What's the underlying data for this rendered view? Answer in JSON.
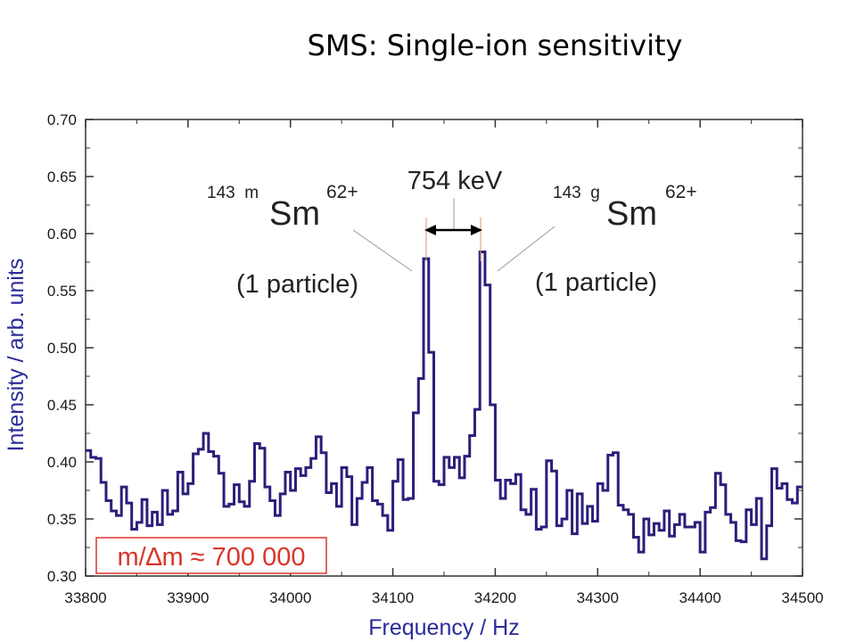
{
  "slide": {
    "title": "SMS: Single-ion sensitivity"
  },
  "chart_data": {
    "type": "line",
    "step": true,
    "xlabel": "Frequency / Hz",
    "ylabel": "Intensity / arb. units",
    "xlim": [
      33800,
      34500
    ],
    "ylim": [
      0.3,
      0.7
    ],
    "xticks": [
      33800,
      33900,
      34000,
      34100,
      34200,
      34300,
      34400,
      34500
    ],
    "xtick_labels": [
      "33800",
      "33900",
      "34000",
      "34100",
      "34200",
      "34300",
      "34400",
      "34500"
    ],
    "yticks": [
      0.3,
      0.35,
      0.4,
      0.45,
      0.5,
      0.55,
      0.6,
      0.65,
      0.7
    ],
    "ytick_labels": [
      "0.30",
      "0.35",
      "0.40",
      "0.45",
      "0.50",
      "0.55",
      "0.60",
      "0.65",
      "0.70"
    ],
    "line_color": "#2a1f7a",
    "series": [
      {
        "x": [
          33800,
          33805,
          33810,
          33815,
          33820,
          33825,
          33830,
          33835,
          33840,
          33845,
          33850,
          33855,
          33860,
          33865,
          33870,
          33875,
          33880,
          33885,
          33890,
          33895,
          33900,
          33905,
          33910,
          33915,
          33920,
          33925,
          33930,
          33935,
          33940,
          33945,
          33950,
          33955,
          33960,
          33965,
          33970,
          33975,
          33980,
          33985,
          33990,
          33995,
          34000,
          34005,
          34010,
          34015,
          34020,
          34025,
          34030,
          34035,
          34040,
          34045,
          34050,
          34055,
          34060,
          34065,
          34070,
          34075,
          34080,
          34085,
          34090,
          34095,
          34100,
          34105,
          34110,
          34115,
          34120,
          34125,
          34130,
          34135,
          34140,
          34145,
          34150,
          34155,
          34160,
          34165,
          34170,
          34175,
          34180,
          34185,
          34190,
          34195,
          34200,
          34205,
          34210,
          34215,
          34220,
          34225,
          34230,
          34235,
          34240,
          34245,
          34250,
          34255,
          34260,
          34265,
          34270,
          34275,
          34280,
          34285,
          34290,
          34295,
          34300,
          34305,
          34310,
          34315,
          34320,
          34325,
          34330,
          34335,
          34340,
          34345,
          34350,
          34355,
          34360,
          34365,
          34370,
          34375,
          34380,
          34385,
          34390,
          34395,
          34400,
          34405,
          34410,
          34415,
          34420,
          34425,
          34430,
          34435,
          34440,
          34445,
          34450,
          34455,
          34460,
          34465,
          34470,
          34475,
          34480,
          34485,
          34490,
          34495
        ],
        "y": [
          0.41,
          0.404,
          0.403,
          0.382,
          0.366,
          0.357,
          0.353,
          0.378,
          0.364,
          0.341,
          0.347,
          0.367,
          0.344,
          0.356,
          0.345,
          0.375,
          0.354,
          0.357,
          0.391,
          0.372,
          0.381,
          0.407,
          0.411,
          0.425,
          0.409,
          0.405,
          0.39,
          0.361,
          0.363,
          0.38,
          0.365,
          0.361,
          0.383,
          0.416,
          0.412,
          0.378,
          0.366,
          0.353,
          0.372,
          0.391,
          0.375,
          0.394,
          0.388,
          0.395,
          0.403,
          0.422,
          0.408,
          0.373,
          0.381,
          0.361,
          0.395,
          0.387,
          0.345,
          0.368,
          0.382,
          0.395,
          0.366,
          0.363,
          0.353,
          0.34,
          0.383,
          0.402,
          0.367,
          0.368,
          0.443,
          0.473,
          0.578,
          0.496,
          0.383,
          0.38,
          0.404,
          0.395,
          0.404,
          0.386,
          0.405,
          0.423,
          0.446,
          0.584,
          0.555,
          0.45,
          0.384,
          0.368,
          0.384,
          0.381,
          0.389,
          0.358,
          0.354,
          0.376,
          0.341,
          0.343,
          0.401,
          0.392,
          0.344,
          0.35,
          0.375,
          0.337,
          0.372,
          0.346,
          0.361,
          0.348,
          0.381,
          0.375,
          0.406,
          0.408,
          0.362,
          0.358,
          0.354,
          0.334,
          0.321,
          0.35,
          0.336,
          0.346,
          0.34,
          0.357,
          0.335,
          0.345,
          0.354,
          0.343,
          0.343,
          0.347,
          0.321,
          0.356,
          0.36,
          0.39,
          0.38,
          0.354,
          0.347,
          0.331,
          0.33,
          0.358,
          0.345,
          0.368,
          0.315,
          0.344,
          0.394,
          0.377,
          0.381,
          0.367,
          0.364,
          0.378
        ]
      }
    ],
    "annotations": {
      "separation": "754 keV",
      "left_mass": "143",
      "left_state": "m",
      "left_state_color": "#cc2a1e",
      "left_element": "Sm",
      "left_charge": "62+",
      "left_count": "(1 particle)",
      "right_mass": "143",
      "right_state": "g",
      "right_state_color": "#2a7fc8",
      "right_element": "Sm",
      "right_charge": "62+",
      "right_count": "(1 particle)",
      "resolution": "m/∆m ≈ 700 000",
      "resolution_color": "#d9362b",
      "marker_color": "#e09070"
    }
  }
}
